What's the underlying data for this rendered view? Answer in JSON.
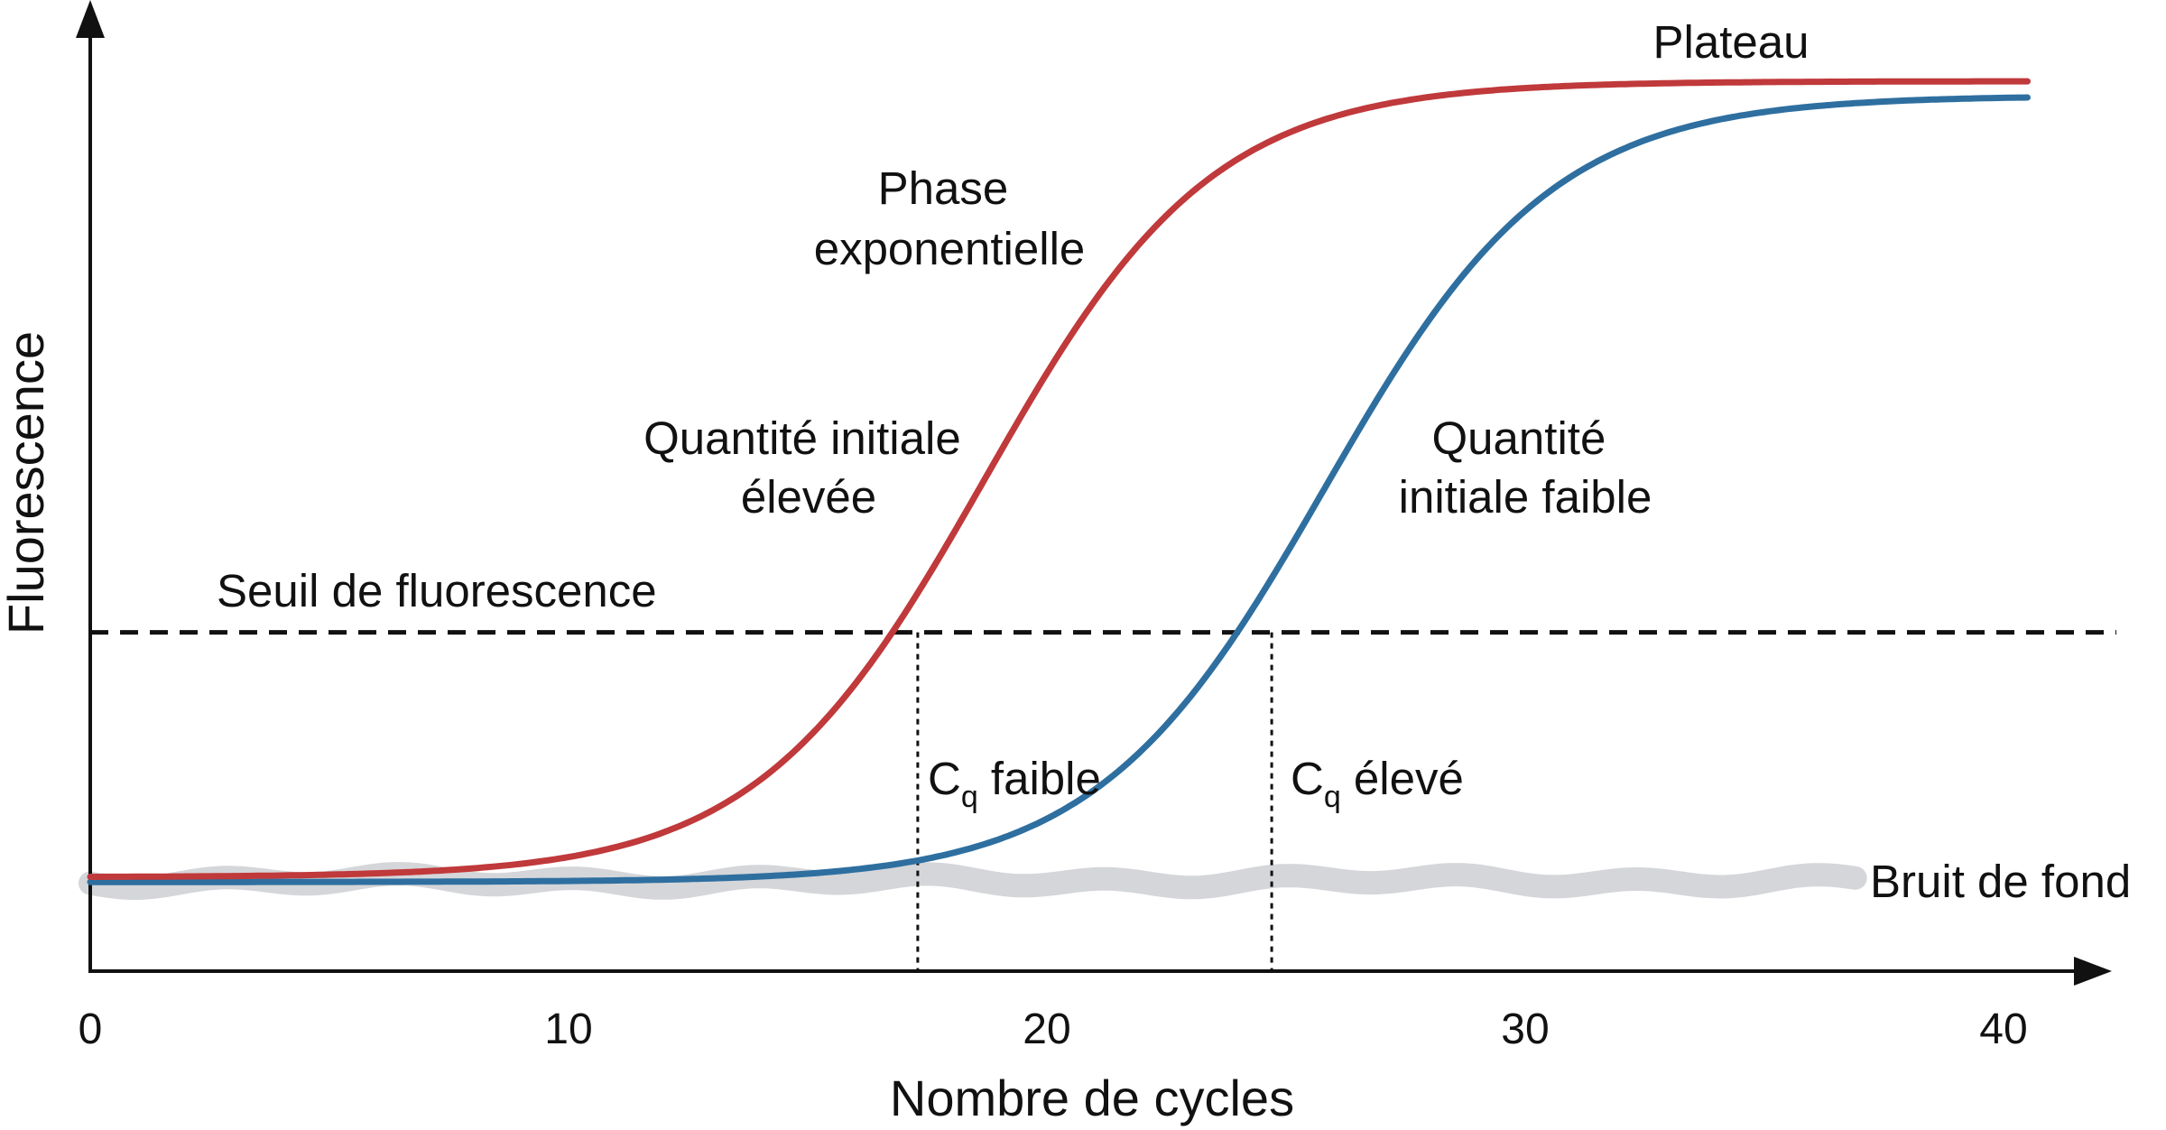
{
  "chart_data": {
    "type": "line",
    "title": "",
    "xlabel": "Nombre de cycles",
    "ylabel": "Fluorescence",
    "xlim": [
      0,
      42
    ],
    "x_ticks": [
      "0",
      "10",
      "20",
      "30",
      "40"
    ],
    "grid": false,
    "threshold": {
      "label": "Seuil de fluorescence",
      "value": 0.32
    },
    "background_noise": {
      "label": "Bruit de fond",
      "x_end": 37
    },
    "series": [
      {
        "name": "Quantité initiale élevée",
        "color": "#c0393b",
        "midpoint": 18.7,
        "slope": 0.42,
        "base": 0.018,
        "plateau": 1.0
      },
      {
        "name": "Quantité initiale faible",
        "color": "#2e6fa0",
        "midpoint": 25.8,
        "slope": 0.42,
        "base": 0.012,
        "plateau": 0.982
      }
    ],
    "cq_markers": [
      {
        "cycle": 17.3,
        "label_main": "C",
        "label_sub": "q",
        "label_rest": " faible"
      },
      {
        "cycle": 24.7,
        "label_main": "C",
        "label_sub": "q",
        "label_rest": " élevé"
      }
    ],
    "annotations": [
      {
        "lines": [
          "Plateau"
        ],
        "anchor": "plateau"
      },
      {
        "lines": [
          "Phase",
          "exponentielle"
        ],
        "anchor": "exponential"
      },
      {
        "lines": [
          "Quantité initiale",
          "élevée"
        ],
        "anchor": "high"
      },
      {
        "lines": [
          "Quantité",
          "initiale faible"
        ],
        "anchor": "low"
      }
    ]
  }
}
